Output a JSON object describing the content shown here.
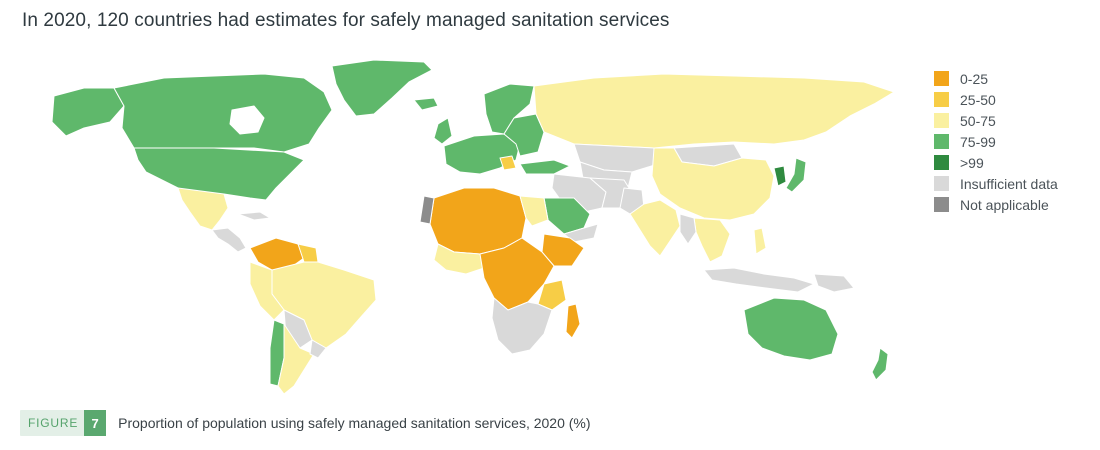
{
  "title": "In 2020, 120 countries had estimates for safely managed sanitation services",
  "legend": {
    "items": [
      {
        "label": "0-25",
        "color": "#f2a51a"
      },
      {
        "label": "25-50",
        "color": "#f7cd46"
      },
      {
        "label": "50-75",
        "color": "#faf0a0"
      },
      {
        "label": "75-99",
        "color": "#5fb86b"
      },
      {
        "label": ">99",
        "color": "#2f8a3f"
      },
      {
        "label": "Insufficient data",
        "color": "#d9d9d9"
      },
      {
        "label": "Not applicable",
        "color": "#8c8c8c"
      }
    ]
  },
  "figure": {
    "word": "FIGURE",
    "number": "7",
    "caption": "Proportion of population using safely managed sanitation services, 2020 (%)"
  },
  "colors": {
    "land_border": "#ffffff",
    "map_outline": "#b8b8b8"
  }
}
